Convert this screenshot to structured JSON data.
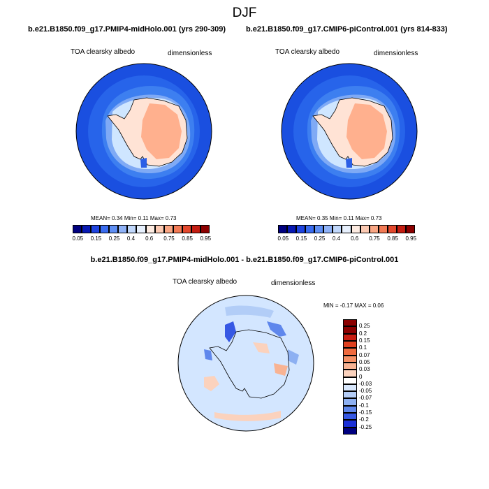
{
  "figure": {
    "title": "DJF",
    "colors": {
      "ocean_dark": "#1a4fe0",
      "ocean_mid": "#3d7ff0",
      "ice_light": "#cfe6ff",
      "land_light": "#ffe3d5",
      "land_dark": "#ffb08e",
      "diff_bg": "#d3e6ff"
    }
  },
  "panels": [
    {
      "run_title": "b.e21.B1850.f09_g17.PMIP4-midHolo.001 (yrs 290-309)",
      "variable": "TOA clearsky albedo",
      "units": "dimensionless",
      "mean_label": "MEAN=",
      "mean": "0.34",
      "min_label": "Min=",
      "min": "0.11",
      "max_label": "Max=",
      "max": "0.73"
    },
    {
      "run_title": "b.e21.B1850.f09_g17.CMIP6-piControl.001 (yrs 814-833)",
      "variable": "TOA clearsky albedo",
      "units": "dimensionless",
      "mean_label": "MEAN=",
      "mean": "0.35",
      "min_label": "Min=",
      "min": "0.11",
      "max_label": "Max=",
      "max": "0.73"
    }
  ],
  "colorbar_main": {
    "colors": [
      "#00007f",
      "#0819b3",
      "#1f44e0",
      "#3a6cf0",
      "#5f8ff4",
      "#8fb2f7",
      "#c0d7fb",
      "#e7f0fd",
      "#fdebe1",
      "#fccab3",
      "#f9a684",
      "#f27a55",
      "#e3482d",
      "#c41d12",
      "#8c0000"
    ],
    "tick_labels": [
      "0.05",
      "0.15",
      "0.25",
      "0.4",
      "0.6",
      "0.75",
      "0.85",
      "0.95"
    ]
  },
  "difference": {
    "title": "b.e21.B1850.f09_g17.PMIP4-midHolo.001 - b.e21.B1850.f09_g17.CMIP6-piControl.001",
    "variable": "TOA clearsky albedo",
    "units": "dimensionless",
    "min_label": "MIN =",
    "min": "-0.17",
    "max_label": "MAX =",
    "max": "0.06",
    "colorbar_colors": [
      "#8b0000",
      "#c81d11",
      "#e0401f",
      "#ef6a3e",
      "#f59066",
      "#f8b393",
      "#fbd2bd",
      "#ffffff",
      "#d8e7fc",
      "#b4cdf7",
      "#8db0f2",
      "#5f87ec",
      "#3658e4",
      "#1a2fd7",
      "#000080"
    ],
    "tick_labels": [
      "0.25",
      "0.2",
      "0.15",
      "0.1",
      "0.07",
      "0.05",
      "0.03",
      "0",
      "-0.03",
      "-0.05",
      "-0.07",
      "-0.1",
      "-0.15",
      "-0.2",
      "-0.25"
    ]
  }
}
